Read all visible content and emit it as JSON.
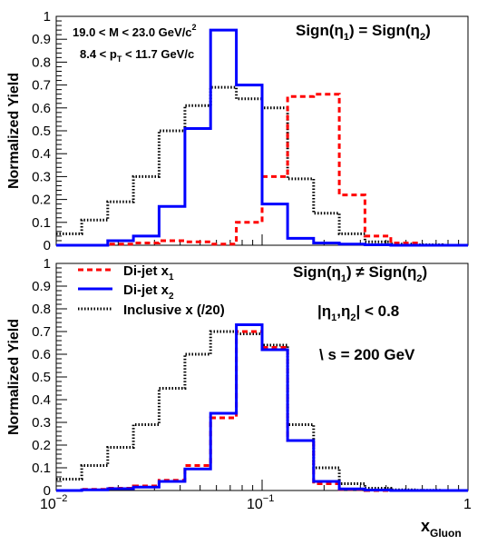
{
  "chart_data": [
    {
      "type": "step",
      "panel": "top",
      "ylabel": "Normalized Yield",
      "ylim": [
        0,
        1
      ],
      "x_scale": "log",
      "xlim": [
        0.01,
        1
      ],
      "yticks": [
        "0",
        "0.1",
        "0.2",
        "0.3",
        "0.4",
        "0.5",
        "0.6",
        "0.7",
        "0.8",
        "0.9",
        "1"
      ],
      "annotations": {
        "mass_cut": "19.0 < M < 23.0 GeV/c",
        "mass_cut_sup": "2",
        "pt_cut_pre": "8.4 < p",
        "pt_cut_sub": "T",
        "pt_cut_post": " < 11.7 GeV/c",
        "sign_title": "Sign(η",
        "sign_sub1": "1",
        "sign_mid": ") = Sign(η",
        "sign_sub2": "2",
        "sign_end": ")"
      },
      "bin_edges": [
        0.01,
        0.0133,
        0.0178,
        0.0237,
        0.0316,
        0.0422,
        0.0562,
        0.075,
        0.1,
        0.133,
        0.178,
        0.237,
        0.316,
        0.422,
        0.562,
        0.75,
        1.0
      ],
      "series": [
        {
          "name": "Di-jet x1",
          "color": "#ff0000",
          "style": "dashed",
          "values": [
            0,
            0,
            0.005,
            0.01,
            0.02,
            0.015,
            0.005,
            0.1,
            0.3,
            0.65,
            0.66,
            0.22,
            0.04,
            0.01,
            0,
            0
          ]
        },
        {
          "name": "Di-jet x2",
          "color": "#0000ff",
          "style": "solid",
          "values": [
            0,
            0,
            0.02,
            0.04,
            0.17,
            0.51,
            0.94,
            0.7,
            0.18,
            0.03,
            0.01,
            0.005,
            0.002,
            0,
            0,
            0
          ]
        },
        {
          "name": "Inclusive x (/20)",
          "color": "#000000",
          "style": "dotted",
          "values": [
            0.05,
            0.11,
            0.19,
            0.3,
            0.5,
            0.61,
            0.69,
            0.64,
            0.6,
            0.29,
            0.14,
            0.05,
            0.015,
            0.005,
            0.002,
            0
          ]
        }
      ]
    },
    {
      "type": "step",
      "panel": "bottom",
      "ylabel": "Normalized Yield",
      "xlabel": "x",
      "xlabel_sub": "Gluon",
      "ylim": [
        0,
        1
      ],
      "x_scale": "log",
      "xlim": [
        0.01,
        1
      ],
      "yticks": [
        "0",
        "0.1",
        "0.2",
        "0.3",
        "0.4",
        "0.5",
        "0.6",
        "0.7",
        "0.8",
        "0.9",
        "1"
      ],
      "xticks": [
        {
          "base": "10",
          "exp": "−2"
        },
        {
          "base": "10",
          "exp": "−1"
        },
        {
          "base": "1",
          "exp": ""
        }
      ],
      "legend": {
        "placement": "top-left",
        "entries": [
          {
            "label": "Di-jet x",
            "sub": "1"
          },
          {
            "label": "Di-jet x",
            "sub": "2"
          },
          {
            "label": "Inclusive x (/20)",
            "sub": ""
          }
        ]
      },
      "annotations": {
        "sign_title": "Sign(η",
        "sign_sub1": "1",
        "sign_mid": ") ≠ Sign(η",
        "sign_sub2": "2",
        "sign_end": ")",
        "eta_cut_pre": "|η",
        "eta_sub1": "1",
        "eta_mid": ",η",
        "eta_sub2": "2",
        "eta_post": "| < 0.8",
        "sqrt_s": "\\ s = 200 GeV"
      },
      "bin_edges": [
        0.01,
        0.0133,
        0.0178,
        0.0237,
        0.0316,
        0.0422,
        0.0562,
        0.075,
        0.1,
        0.133,
        0.178,
        0.237,
        0.316,
        0.422,
        0.562,
        0.75,
        1.0
      ],
      "series": [
        {
          "name": "Di-jet x1",
          "color": "#ff0000",
          "style": "dashed",
          "values": [
            0,
            0.005,
            0.01,
            0.02,
            0.045,
            0.11,
            0.32,
            0.7,
            0.63,
            0.22,
            0.03,
            0.005,
            0,
            0,
            0,
            0
          ]
        },
        {
          "name": "Di-jet x2",
          "color": "#0000ff",
          "style": "solid",
          "values": [
            0,
            0.003,
            0.008,
            0.015,
            0.04,
            0.095,
            0.34,
            0.73,
            0.62,
            0.22,
            0.04,
            0.007,
            0.002,
            0,
            0,
            0
          ]
        },
        {
          "name": "Inclusive x (/20)",
          "color": "#000000",
          "style": "dotted",
          "values": [
            0.05,
            0.11,
            0.19,
            0.29,
            0.45,
            0.6,
            0.7,
            0.69,
            0.64,
            0.29,
            0.1,
            0.03,
            0.01,
            0.003,
            0.001,
            0
          ]
        }
      ]
    }
  ]
}
